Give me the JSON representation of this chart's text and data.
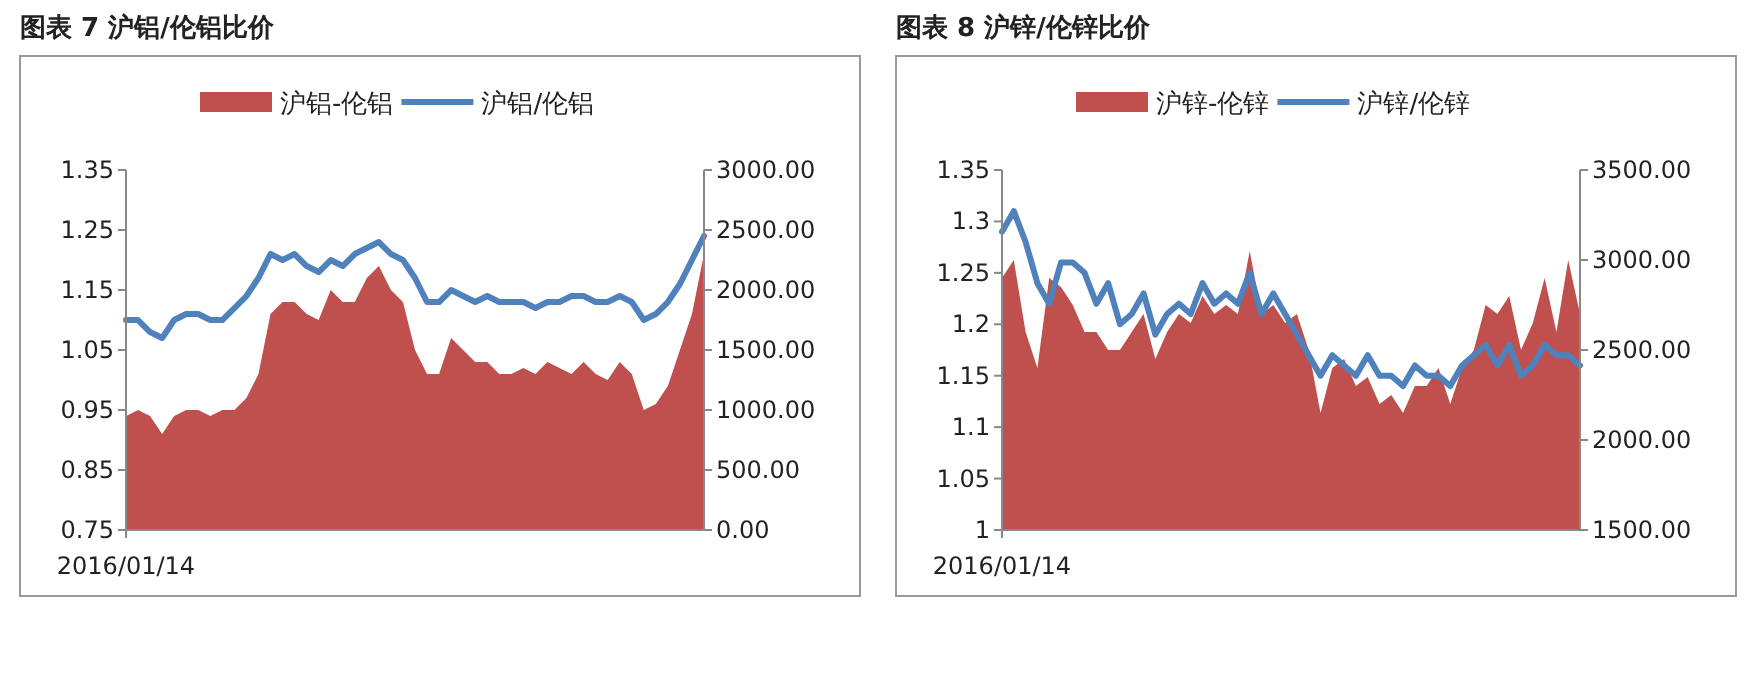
{
  "chart_data": [
    {
      "type": "line",
      "title": "图表 7 沪铝/伦铝比价",
      "legend": "top",
      "grid": false,
      "categories": [
        "2016/01/14",
        null,
        null,
        null,
        null,
        null,
        null,
        null,
        null,
        null,
        null,
        null,
        null,
        null,
        null,
        null,
        null,
        null,
        null,
        null,
        null,
        null,
        null,
        null,
        null,
        null,
        null,
        null,
        null,
        null,
        null,
        null,
        null,
        null,
        null,
        null,
        null,
        null,
        null,
        null,
        null,
        null,
        null,
        null,
        null,
        null,
        null,
        null,
        null
      ],
      "ylim": [
        0.75,
        1.35
      ],
      "yticks": [
        0.75,
        0.85,
        0.95,
        1.05,
        1.15,
        1.25,
        1.35
      ],
      "y2lim": [
        0,
        3000
      ],
      "y2ticks": [
        {
          "value": 0,
          "label": "0.00"
        },
        {
          "value": 500,
          "label": "500.00"
        },
        {
          "value": 1000,
          "label": "1000.00"
        },
        {
          "value": 1500,
          "label": "1500.00"
        },
        {
          "value": 2000,
          "label": "2000.00"
        },
        {
          "value": 2500,
          "label": "2500.00"
        },
        {
          "value": 3000,
          "label": "3000.00"
        }
      ],
      "series": [
        {
          "name": "沪铝-伦铝",
          "type": "area",
          "axis": "y2",
          "color": "#c0504d",
          "values": [
            950,
            1000,
            950,
            800,
            950,
            1000,
            1000,
            950,
            1000,
            1000,
            1100,
            1300,
            1800,
            1900,
            1900,
            1800,
            1750,
            2000,
            1900,
            1900,
            2100,
            2200,
            2000,
            1900,
            1500,
            1300,
            1300,
            1600,
            1500,
            1400,
            1400,
            1300,
            1300,
            1350,
            1300,
            1400,
            1350,
            1300,
            1400,
            1300,
            1250,
            1400,
            1300,
            1000,
            1050,
            1200,
            1500,
            1800,
            2300
          ]
        },
        {
          "name": "沪铝/伦铝",
          "color": "#4f81bd",
          "values": [
            1.1,
            1.1,
            1.08,
            1.07,
            1.1,
            1.11,
            1.11,
            1.1,
            1.1,
            1.12,
            1.14,
            1.17,
            1.21,
            1.2,
            1.21,
            1.19,
            1.18,
            1.2,
            1.19,
            1.21,
            1.22,
            1.23,
            1.21,
            1.2,
            1.17,
            1.13,
            1.13,
            1.15,
            1.14,
            1.13,
            1.14,
            1.13,
            1.13,
            1.13,
            1.12,
            1.13,
            1.13,
            1.14,
            1.14,
            1.13,
            1.13,
            1.14,
            1.13,
            1.1,
            1.11,
            1.13,
            1.16,
            1.2,
            1.24
          ]
        }
      ]
    },
    {
      "type": "line",
      "title": "图表 8 沪锌/伦锌比价",
      "legend": "top",
      "grid": false,
      "categories": [
        "2016/01/14",
        null,
        null,
        null,
        null,
        null,
        null,
        null,
        null,
        null,
        null,
        null,
        null,
        null,
        null,
        null,
        null,
        null,
        null,
        null,
        null,
        null,
        null,
        null,
        null,
        null,
        null,
        null,
        null,
        null,
        null,
        null,
        null,
        null,
        null,
        null,
        null,
        null,
        null,
        null,
        null,
        null,
        null,
        null,
        null,
        null,
        null,
        null,
        null,
        null
      ],
      "ylim": [
        1,
        1.35
      ],
      "yticks": [
        1,
        1.05,
        1.1,
        1.15,
        1.2,
        1.25,
        1.3,
        1.35
      ],
      "y2lim": [
        1500,
        3500
      ],
      "y2ticks": [
        {
          "value": 1500,
          "label": "1500.00"
        },
        {
          "value": 2000,
          "label": "2000.00"
        },
        {
          "value": 2500,
          "label": "2500.00"
        },
        {
          "value": 3000,
          "label": "3000.00"
        },
        {
          "value": 3500,
          "label": "3500.00"
        }
      ],
      "series": [
        {
          "name": "沪锌-伦锌",
          "type": "area",
          "axis": "y2",
          "color": "#c0504d",
          "values": [
            2900,
            3000,
            2600,
            2400,
            2900,
            2850,
            2750,
            2600,
            2600,
            2500,
            2500,
            2600,
            2700,
            2450,
            2600,
            2700,
            2650,
            2800,
            2700,
            2750,
            2700,
            3050,
            2700,
            2750,
            2650,
            2700,
            2500,
            2150,
            2400,
            2450,
            2300,
            2350,
            2200,
            2250,
            2150,
            2300,
            2300,
            2400,
            2200,
            2400,
            2500,
            2750,
            2700,
            2800,
            2500,
            2650,
            2900,
            2600,
            3000,
            2700
          ]
        },
        {
          "name": "沪锌/伦锌",
          "color": "#4f81bd",
          "values": [
            1.29,
            1.31,
            1.28,
            1.24,
            1.22,
            1.26,
            1.26,
            1.25,
            1.22,
            1.24,
            1.2,
            1.21,
            1.23,
            1.19,
            1.21,
            1.22,
            1.21,
            1.24,
            1.22,
            1.23,
            1.22,
            1.25,
            1.21,
            1.23,
            1.21,
            1.19,
            1.17,
            1.15,
            1.17,
            1.16,
            1.15,
            1.17,
            1.15,
            1.15,
            1.14,
            1.16,
            1.15,
            1.15,
            1.14,
            1.16,
            1.17,
            1.18,
            1.16,
            1.18,
            1.15,
            1.16,
            1.18,
            1.17,
            1.17,
            1.16
          ]
        }
      ]
    }
  ]
}
